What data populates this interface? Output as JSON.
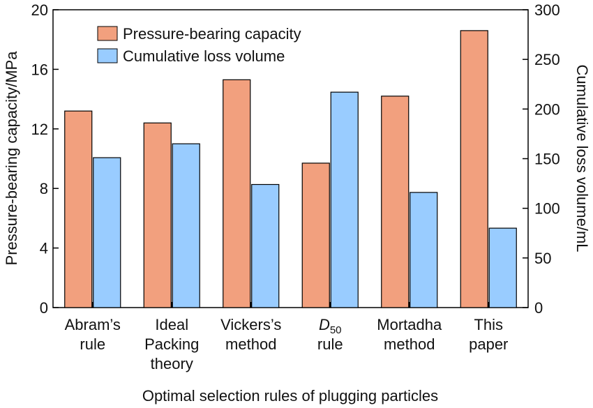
{
  "chart_data": {
    "type": "bar",
    "title": "",
    "xlabel": "Optimal selection rules of plugging particles",
    "ylabel": "Pressure-bearing capacity/MPa",
    "y2label": "Cumulative loss volume/mL",
    "ylim": [
      0,
      20
    ],
    "y2lim": [
      0,
      300
    ],
    "yticks": [
      "0",
      "4",
      "8",
      "12",
      "16",
      "20"
    ],
    "y2ticks": [
      "0",
      "50",
      "100",
      "150",
      "200",
      "250",
      "300"
    ],
    "categories": [
      [
        "Abram’s",
        "rule"
      ],
      [
        "Ideal",
        "Packing",
        "theory"
      ],
      [
        "Vickers’s",
        "method"
      ],
      [
        "D50",
        "rule"
      ],
      [
        "Mortadha",
        "method"
      ],
      [
        "This",
        "paper"
      ]
    ],
    "series": [
      {
        "name": "Pressure-bearing capacity",
        "axis": "left",
        "color": "#F2A07E",
        "values": [
          13.2,
          12.4,
          15.3,
          9.7,
          14.2,
          18.6
        ]
      },
      {
        "name": "Cumulative loss volume",
        "axis": "right",
        "color": "#99CCFF",
        "values": [
          151,
          165,
          124,
          217,
          116,
          80
        ]
      }
    ],
    "legend_position": "top-left",
    "grid": false
  }
}
